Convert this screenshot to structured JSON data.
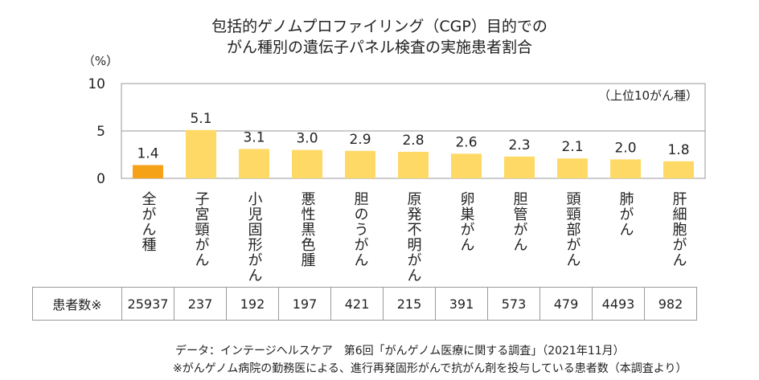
{
  "title_line1": "包括的ゲノムプロファイリング（CGP）目的での",
  "title_line2": "がん種別の遺伝子パネル検査の実施患者割合",
  "chart_data": {
    "type": "bar",
    "ylabel": "（%）",
    "ylim": [
      0,
      10
    ],
    "yticks": [
      "10",
      "5",
      "0"
    ],
    "annotation": "（上位10がん種）",
    "categories": [
      "全がん種",
      "子宮頸がん",
      "小児固形がん",
      "悪性黒色腫",
      "胆のうがん",
      "原発不明がん",
      "卵巣がん",
      "胆管がん",
      "頭頸部がん",
      "肺がん",
      "肝細胞がん"
    ],
    "values": [
      1.4,
      5.1,
      3.1,
      3.0,
      2.9,
      2.8,
      2.6,
      2.3,
      2.1,
      2.0,
      1.8
    ],
    "value_labels": [
      "1.4",
      "5.1",
      "3.1",
      "3.0",
      "2.9",
      "2.8",
      "2.6",
      "2.3",
      "2.1",
      "2.0",
      "1.8"
    ],
    "bar_colors": [
      "#f5a219",
      "#ffd966",
      "#ffd966",
      "#ffd966",
      "#ffd966",
      "#ffd966",
      "#ffd966",
      "#ffd966",
      "#ffd966",
      "#ffd966",
      "#ffd966"
    ],
    "grid": true
  },
  "table": {
    "header": "患者数※",
    "counts": [
      "25937",
      "237",
      "192",
      "197",
      "421",
      "215",
      "391",
      "573",
      "479",
      "4493",
      "982"
    ]
  },
  "notes": {
    "source": "データ：インテージヘルスケア　第6回「がんゲノム医療に関する調査」（2021年11月）",
    "footnote": "※がんゲノム病院の勤務医による、進行再発固形がんで抗がん剤を投与している患者数（本調査より）"
  }
}
